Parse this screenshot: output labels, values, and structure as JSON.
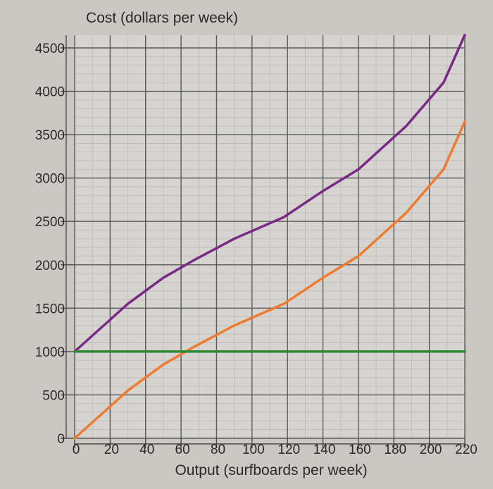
{
  "chart_data": {
    "type": "line",
    "title": "",
    "ylabel": "Cost (dollars per week)",
    "xlabel": "Output (surfboards per week)",
    "xlim": [
      0,
      220
    ],
    "ylim": [
      0,
      4500
    ],
    "xticks": [
      0,
      20,
      40,
      60,
      80,
      100,
      120,
      140,
      160,
      180,
      200,
      220
    ],
    "yticks": [
      0,
      500,
      1000,
      1500,
      2000,
      2500,
      3000,
      3500,
      4000,
      4500
    ],
    "x_tick_labels": [
      "0",
      "20",
      "40",
      "60",
      "80",
      "100",
      "120",
      "140",
      "160",
      "180",
      "200",
      "220"
    ],
    "y_tick_labels": [
      "0",
      "500",
      "1000",
      "1500",
      "2000",
      "2500",
      "3000",
      "3500",
      "4000",
      "4500"
    ],
    "grid": true,
    "series": [
      {
        "color": "#7a2a86",
        "points": [
          [
            0,
            1000
          ],
          [
            30,
            1550
          ],
          [
            50,
            1850
          ],
          [
            67,
            2050
          ],
          [
            90,
            2300
          ],
          [
            118,
            2550
          ],
          [
            140,
            2850
          ],
          [
            160,
            3100
          ],
          [
            187,
            3600
          ],
          [
            208,
            4100
          ],
          [
            220,
            4650
          ]
        ]
      },
      {
        "color": "#ee7b2e",
        "points": [
          [
            0,
            0
          ],
          [
            30,
            550
          ],
          [
            50,
            850
          ],
          [
            67,
            1050
          ],
          [
            90,
            1300
          ],
          [
            118,
            1550
          ],
          [
            140,
            1850
          ],
          [
            160,
            2100
          ],
          [
            187,
            2600
          ],
          [
            208,
            3100
          ],
          [
            220,
            3650
          ]
        ]
      },
      {
        "color": "#2d8a33",
        "points": [
          [
            0,
            1000
          ],
          [
            220,
            1000
          ]
        ]
      }
    ]
  }
}
